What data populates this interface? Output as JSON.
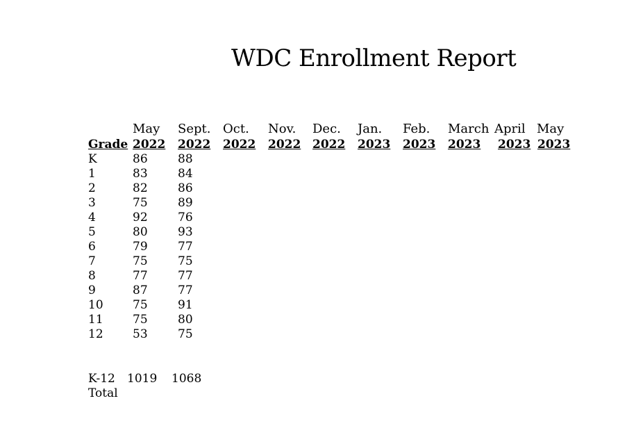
{
  "title": "WDC Enrollment Report",
  "header": {
    "grade_label": "Grade",
    "columns": [
      {
        "month": "May",
        "year": "2022"
      },
      {
        "month": "Sept.",
        "year": "2022"
      },
      {
        "month": "Oct.",
        "year": "2022"
      },
      {
        "month": "Nov.",
        "year": "2022"
      },
      {
        "month": "Dec.",
        "year": "2022"
      },
      {
        "month": "Jan.",
        "year": "2023"
      },
      {
        "month": "Feb.",
        "year": "2023"
      },
      {
        "month": "March",
        "year": "2023"
      },
      {
        "month": "April",
        "year": "2023"
      },
      {
        "month": "May",
        "year": "2023"
      }
    ]
  },
  "rows": [
    {
      "grade": "K",
      "values": [
        "86",
        "88"
      ]
    },
    {
      "grade": "1",
      "values": [
        "83",
        "84"
      ]
    },
    {
      "grade": "2",
      "values": [
        "82",
        "86"
      ]
    },
    {
      "grade": "3",
      "values": [
        "75",
        "89"
      ]
    },
    {
      "grade": "4",
      "values": [
        "92",
        "76"
      ]
    },
    {
      "grade": "5",
      "values": [
        "80",
        "93"
      ]
    },
    {
      "grade": "6",
      "values": [
        "79",
        "77"
      ]
    },
    {
      "grade": "7",
      "values": [
        "75",
        "75"
      ]
    },
    {
      "grade": "8",
      "values": [
        "77",
        "77"
      ]
    },
    {
      "grade": "9",
      "values": [
        "87",
        "77"
      ]
    },
    {
      "grade": "10",
      "values": [
        "75",
        "91"
      ]
    },
    {
      "grade": "11",
      "values": [
        "75",
        "80"
      ]
    },
    {
      "grade": "12",
      "values": [
        "53",
        "75"
      ]
    }
  ],
  "total": {
    "label_line1": "K-12",
    "label_line2": "Total",
    "values": [
      "1019",
      "1068"
    ]
  }
}
